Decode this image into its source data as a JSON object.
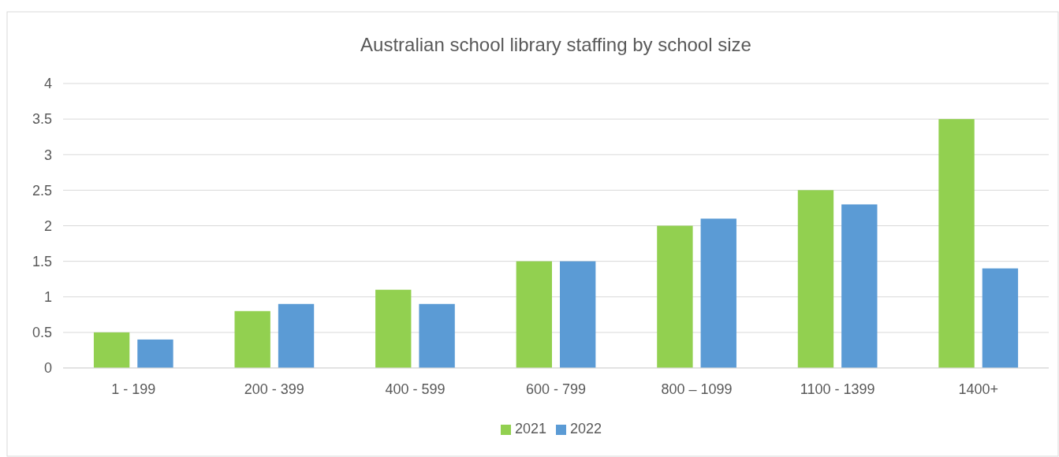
{
  "chart_data": {
    "type": "bar",
    "title": "Australian school library staffing by school size",
    "categories": [
      "1 - 199",
      "200 - 399",
      "400 - 599",
      "600 - 799",
      "800 – 1099",
      "1100 - 1399",
      "1400+"
    ],
    "series": [
      {
        "name": "2021",
        "color": "#92d050",
        "values": [
          0.5,
          0.8,
          1.1,
          1.5,
          2.0,
          2.5,
          3.5
        ]
      },
      {
        "name": "2022",
        "color": "#5b9bd5",
        "values": [
          0.4,
          0.9,
          0.9,
          1.5,
          2.1,
          2.3,
          1.4
        ]
      }
    ],
    "ylim": [
      0,
      4
    ],
    "yticks": [
      0,
      0.5,
      1,
      1.5,
      2,
      2.5,
      3,
      3.5,
      4
    ],
    "grid": "y",
    "legend": "bottom"
  }
}
